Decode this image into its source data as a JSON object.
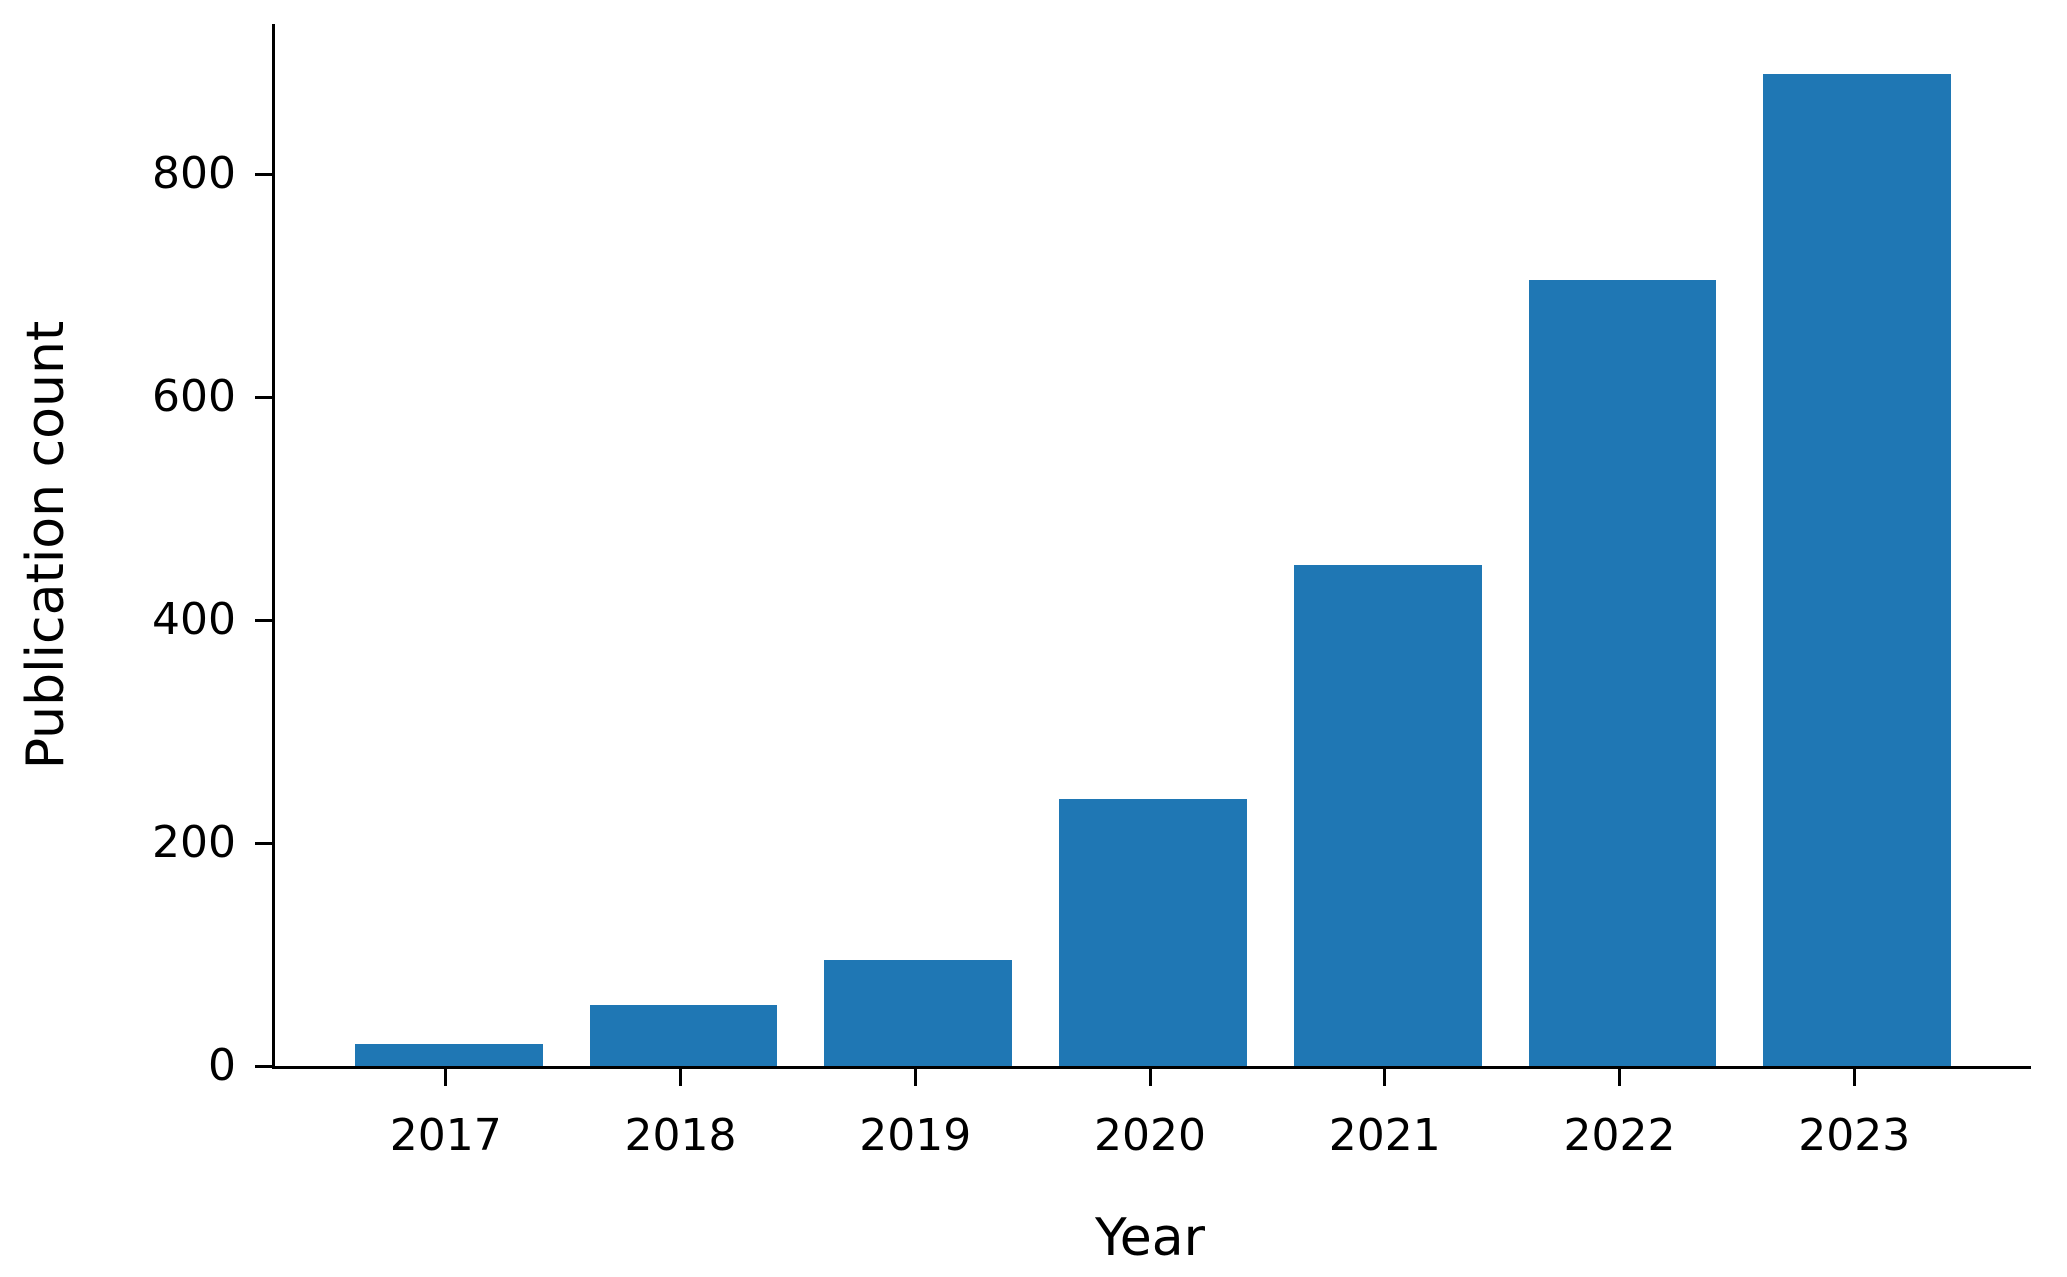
{
  "chart_data": {
    "type": "bar",
    "title": "",
    "xlabel": "Year",
    "ylabel": "Publication count",
    "categories": [
      "2017",
      "2018",
      "2019",
      "2020",
      "2021",
      "2022",
      "2023"
    ],
    "values": [
      20,
      55,
      95,
      240,
      450,
      705,
      890
    ],
    "yticks": [
      0,
      200,
      400,
      600,
      800
    ],
    "ylim": [
      0,
      935
    ],
    "bar_width_fraction": 0.8,
    "grid": false,
    "bar_color": "#1f77b4",
    "axis_color": "#000000",
    "background": "#ffffff"
  }
}
